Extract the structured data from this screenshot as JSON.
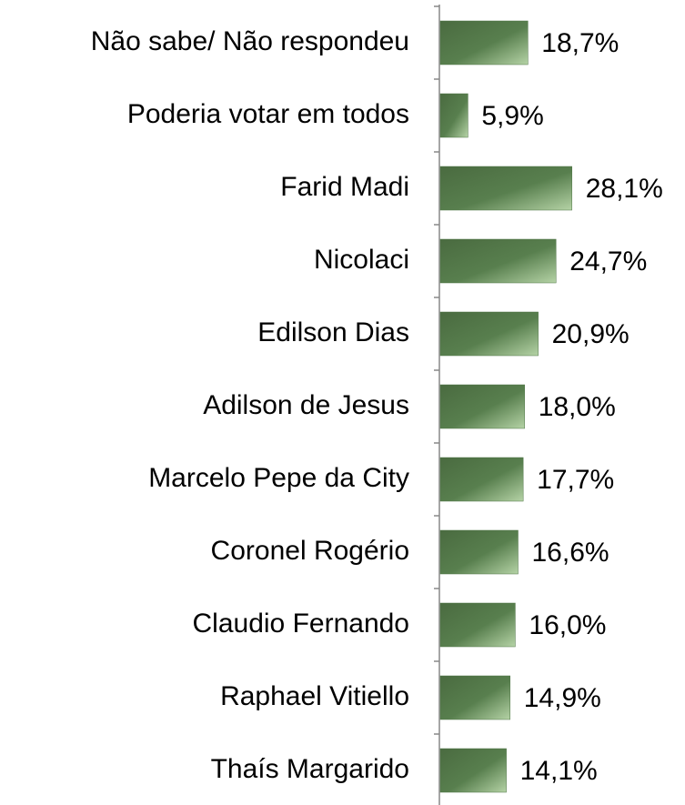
{
  "chart_data": {
    "type": "bar",
    "orientation": "horizontal",
    "categories": [
      "Não sabe/ Não respondeu",
      "Poderia votar em todos",
      "Farid Madi",
      "Nicolaci",
      "Edilson Dias",
      "Adilson de Jesus",
      "Marcelo Pepe da City",
      "Coronel Rogério",
      "Claudio Fernando",
      "Raphael Vitiello",
      "Thaís Margarido"
    ],
    "values": [
      18.7,
      5.9,
      28.1,
      24.7,
      20.9,
      18.0,
      17.7,
      16.6,
      16.0,
      14.9,
      14.1
    ],
    "value_labels": [
      "18,7%",
      "5,9%",
      "28,1%",
      "24,7%",
      "20,9%",
      "18,0%",
      "17,7%",
      "16,6%",
      "16,0%",
      "14,9%",
      "14,1%"
    ],
    "color": "#4e7445"
  }
}
